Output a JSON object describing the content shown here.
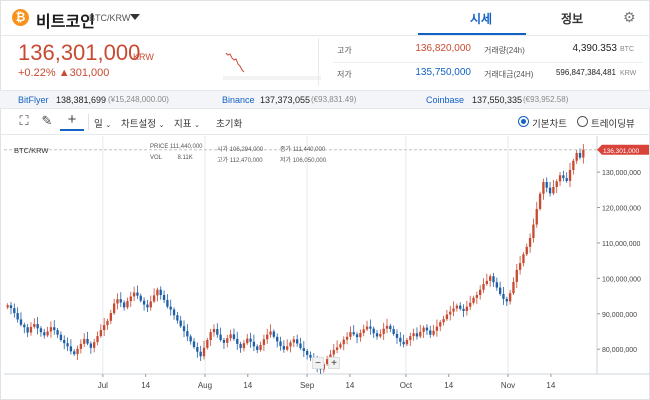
{
  "header": {
    "coin_name": "비트코인",
    "pair": "BTC/KRW",
    "tabs": [
      "시세",
      "정보"
    ],
    "active_tab": "시세"
  },
  "summary": {
    "price": "136,301,000",
    "price_unit": "KRW",
    "change_pct": "+0.22%",
    "change_arrow": "▲",
    "change_amt": "301,000",
    "high_label": "고가",
    "high": "136,820,000",
    "low_label": "저가",
    "low": "135,750,000",
    "volume_label": "거래량(24h)",
    "volume": "4,390.353",
    "volume_unit": "BTC",
    "value_label": "거래대금(24H)",
    "value": "596,847,384,481",
    "value_unit": "KRW"
  },
  "exchanges": [
    {
      "name": "BitFlyer",
      "price": "138,381,699",
      "usd": "(¥15,248,000.00)"
    },
    {
      "name": "Binance",
      "price": "137,373,055",
      "usd": "(€93,831.49)"
    },
    {
      "name": "Coinbase",
      "price": "137,550,335",
      "usd": "(€93,952.58)"
    }
  ],
  "toolbar": {
    "period": "일",
    "chart_settings": "차트설정",
    "indicator": "지표",
    "reset": "초기화",
    "view_basic": "기본차트",
    "view_tv": "트레이딩뷰"
  },
  "ohlc": {
    "symbol": "BTC/KRW",
    "price_lbl": "PRICE",
    "price_val": "111,440,000",
    "open_lbl": "시가",
    "open_val": "106,294,000",
    "close_lbl": "종가",
    "close_val": "111,440,000",
    "vol_lbl": "VOL",
    "vol_val": "8.11K",
    "high_lbl": "고가",
    "high_val": "112,470,000",
    "low_lbl": "저가",
    "low_val": "106,050,000"
  },
  "zoom": {
    "minus": "−",
    "plus": "+"
  },
  "chart_data": {
    "type": "candlestick",
    "y_ticks": [
      80000000,
      90000000,
      100000000,
      110000000,
      120000000,
      130000000
    ],
    "y_tick_labels": [
      "80,000,000",
      "90,000,000",
      "100,000,000",
      "110,000,000",
      "120,000,000",
      "130,000,000"
    ],
    "ylim": [
      73000000,
      138500000
    ],
    "x_tick_labels": [
      "Jul",
      "14",
      "Aug",
      "14",
      "Sep",
      "14",
      "Oct",
      "14",
      "Nov",
      "14"
    ],
    "x_tick_days": [
      30,
      43,
      61,
      74,
      92,
      105,
      122,
      135,
      153,
      166
    ],
    "xlim": [
      0,
      180
    ],
    "last_price_label": "136,301,000",
    "last_price": 136301000,
    "colors": {
      "up": "#c84a31",
      "down": "#1f5fa8"
    },
    "close_series": [
      92.4,
      91.6,
      90.2,
      88.4,
      86.9,
      86.2,
      84.7,
      86.3,
      87.1,
      85.9,
      84.8,
      83.9,
      85.0,
      86.2,
      85.4,
      84.1,
      82.6,
      81.7,
      80.8,
      79.4,
      78.6,
      80.1,
      81.5,
      82.9,
      81.6,
      80.4,
      82.0,
      83.7,
      85.4,
      86.8,
      88.0,
      90.2,
      92.9,
      94.1,
      93.2,
      91.8,
      93.6,
      94.9,
      96.0,
      95.1,
      93.7,
      92.6,
      91.8,
      93.5,
      95.2,
      96.8,
      95.3,
      93.9,
      92.0,
      91.2,
      89.6,
      88.1,
      86.5,
      85.1,
      83.6,
      82.2,
      80.6,
      79.3,
      78.0,
      80.4,
      82.6,
      84.8,
      85.7,
      84.1,
      82.6,
      81.8,
      83.1,
      84.2,
      82.9,
      81.5,
      80.3,
      81.7,
      83.0,
      82.1,
      80.8,
      79.8,
      81.2,
      82.8,
      84.1,
      85.0,
      83.5,
      82.2,
      80.9,
      79.9,
      80.8,
      81.9,
      82.8,
      81.6,
      80.3,
      79.5,
      78.4,
      77.6,
      76.5,
      75.2,
      74.3,
      75.8,
      77.2,
      78.5,
      79.8,
      80.5,
      81.4,
      82.7,
      83.5,
      84.8,
      84.2,
      83.4,
      84.6,
      85.6,
      86.4,
      85.8,
      84.5,
      83.6,
      84.3,
      85.8,
      86.6,
      85.7,
      84.3,
      83.2,
      82.1,
      81.4,
      82.6,
      83.7,
      84.5,
      83.6,
      84.9,
      86.1,
      85.3,
      84.1,
      85.2,
      86.4,
      87.6,
      88.5,
      89.8,
      90.6,
      91.5,
      92.3,
      91.4,
      90.8,
      92.0,
      93.1,
      94.5,
      95.3,
      96.8,
      98.4,
      99.3,
      100.6,
      98.9,
      97.4,
      95.6,
      94.2,
      93.5,
      95.8,
      99.0,
      102.4,
      104.3,
      106.8,
      108.9,
      111.4,
      115.2,
      119.6,
      123.9,
      127.2,
      125.6,
      124.0,
      125.8,
      127.4,
      129.1,
      128.3,
      127.5,
      130.6,
      133.2,
      135.4,
      134.1,
      136.3
    ],
    "close_series_unit": "million KRW"
  }
}
